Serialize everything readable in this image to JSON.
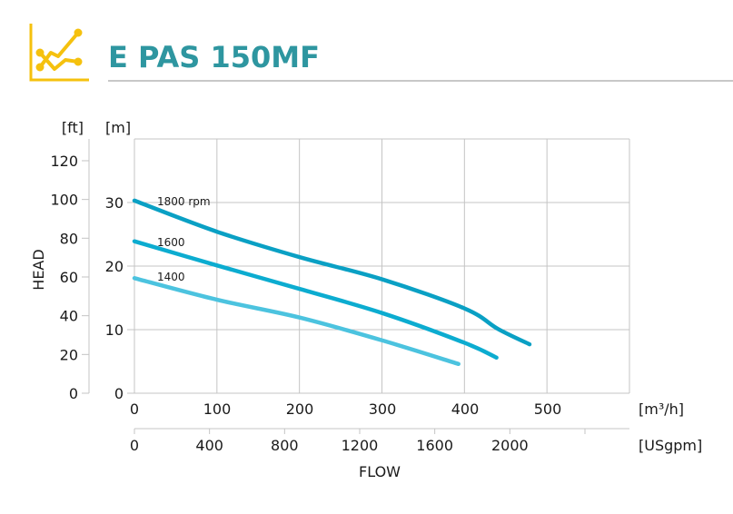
{
  "header": {
    "title": "E PAS 150MF",
    "icon": "line-chart-icon",
    "icon_color": "#f5c10e",
    "title_color": "#2e96a0"
  },
  "chart_data": {
    "type": "line",
    "title": "E PAS 150MF",
    "xlabel": "FLOW",
    "ylabel": "HEAD",
    "x_units": {
      "primary": "[m³/h]",
      "secondary": "[USgpm]"
    },
    "y_units": {
      "primary": "[m]",
      "secondary": "[ft]"
    },
    "x_ticks_m3h": [
      "0",
      "100",
      "200",
      "300",
      "400",
      "500"
    ],
    "x_ticks_usgpm": [
      "0",
      "400",
      "800",
      "1200",
      "1600",
      "2000"
    ],
    "y_ticks_m": [
      "0",
      "10",
      "20",
      "30"
    ],
    "y_ticks_ft": [
      "0",
      "20",
      "40",
      "60",
      "80",
      "100",
      "120"
    ],
    "xlim": [
      0,
      600
    ],
    "ylim": [
      0,
      40
    ],
    "grid": true,
    "series": [
      {
        "name": "1800 rpm",
        "label": "1800 rpm",
        "color": "#0aa0c4",
        "x": [
          0,
          100,
          200,
          300,
          400,
          440,
          478
        ],
        "y": [
          30.3,
          25.4,
          21.4,
          17.9,
          13.3,
          10.1,
          7.7
        ]
      },
      {
        "name": "1600 rpm",
        "label": "1600",
        "color": "#0cacd0",
        "x": [
          0,
          100,
          200,
          300,
          400,
          438
        ],
        "y": [
          23.9,
          20.1,
          16.4,
          12.6,
          7.9,
          5.6
        ]
      },
      {
        "name": "1400 rpm",
        "label": "1400",
        "color": "#4cc3df",
        "x": [
          0,
          100,
          200,
          300,
          392
        ],
        "y": [
          18.1,
          14.7,
          11.9,
          8.3,
          4.6
        ]
      }
    ]
  }
}
